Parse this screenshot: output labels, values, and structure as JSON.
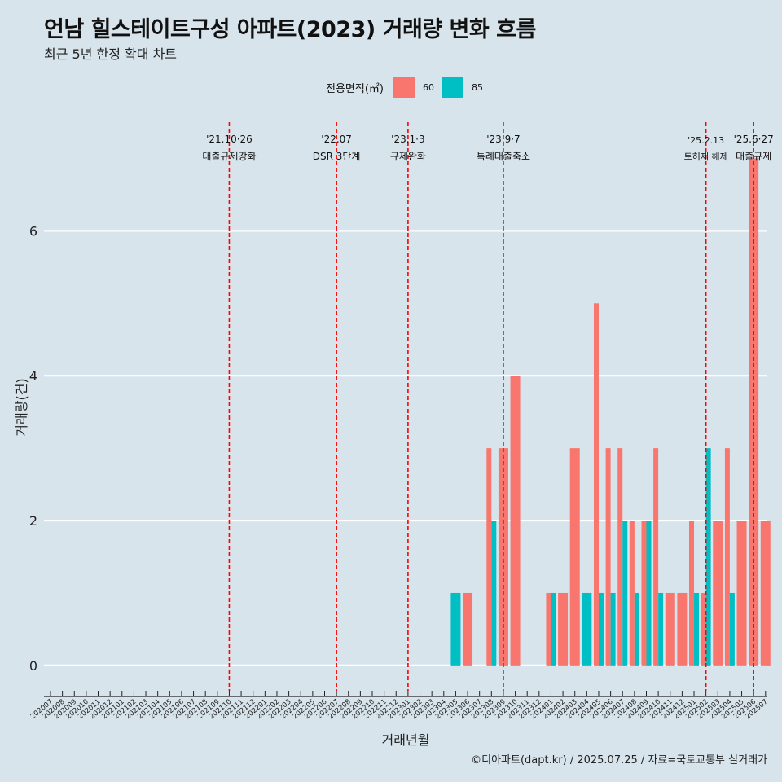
{
  "title": "언남 힐스테이트구성 아파트(2023) 거래량 변화 흐름",
  "subtitle": "최근 5년 한정 확대 차트",
  "caption": "©디아파트(dapt.kr) / 2025.07.25 / 자료=국토교통부 실거래가",
  "legend": {
    "title": "전용면적(㎡)",
    "items": [
      {
        "label": "60",
        "color": "#f8766d"
      },
      {
        "label": "85",
        "color": "#00bfc4"
      }
    ]
  },
  "chart_data": {
    "type": "bar",
    "xlabel": "거래년월",
    "ylabel": "거래량(건)",
    "ylim": [
      -0.35,
      7.5
    ],
    "yticks": [
      0,
      2,
      4,
      6
    ],
    "grid": true,
    "legend_position": "top",
    "categories": [
      "202007",
      "202008",
      "202009",
      "202010",
      "202011",
      "202012",
      "202101",
      "202102",
      "202103",
      "202104",
      "202105",
      "202106",
      "202107",
      "202108",
      "202109",
      "202110",
      "202111",
      "202112",
      "202201",
      "202202",
      "202203",
      "202204",
      "202205",
      "202206",
      "202207",
      "202208",
      "202209",
      "202210",
      "202211",
      "202212",
      "202301",
      "202302",
      "202303",
      "202304",
      "202305",
      "202306",
      "202307",
      "202308",
      "202309",
      "202310",
      "202311",
      "202312",
      "202401",
      "202402",
      "202403",
      "202404",
      "202405",
      "202406",
      "202407",
      "202408",
      "202409",
      "202410",
      "202411",
      "202412",
      "202501",
      "202502",
      "202503",
      "202504",
      "202505",
      "202506",
      "202507"
    ],
    "series": [
      {
        "name": "60",
        "color": "#f8766d",
        "values": [
          0,
          0,
          0,
          0,
          0,
          0,
          0,
          0,
          0,
          0,
          0,
          0,
          0,
          0,
          0,
          0,
          0,
          0,
          0,
          0,
          0,
          0,
          0,
          0,
          0,
          0,
          0,
          0,
          0,
          0,
          0,
          0,
          0,
          0,
          0,
          1,
          0,
          3,
          3,
          4,
          0,
          0,
          1,
          1,
          3,
          0,
          5,
          3,
          3,
          2,
          2,
          3,
          1,
          1,
          2,
          1,
          2,
          3,
          2,
          7,
          2
        ]
      },
      {
        "name": "85",
        "color": "#00bfc4",
        "values": [
          0,
          0,
          0,
          0,
          0,
          0,
          0,
          0,
          0,
          0,
          0,
          0,
          0,
          0,
          0,
          0,
          0,
          0,
          0,
          0,
          0,
          0,
          0,
          0,
          0,
          0,
          0,
          0,
          0,
          0,
          0,
          0,
          0,
          0,
          1,
          0,
          0,
          2,
          0,
          0,
          0,
          0,
          1,
          0,
          0,
          1,
          1,
          1,
          2,
          1,
          2,
          1,
          0,
          0,
          1,
          3,
          0,
          1,
          0,
          0,
          0
        ]
      }
    ],
    "annotations": [
      {
        "month": "202110",
        "date": "'21.10·26",
        "text": "대출규제강화"
      },
      {
        "month": "202207",
        "date": "'22.07",
        "text": "DSR 3단계"
      },
      {
        "month": "202301",
        "date": "'23.1·3",
        "text": "규제완화"
      },
      {
        "month": "202309",
        "date": "'23.9·7",
        "text": "특례대출축소"
      },
      {
        "month": "202502",
        "date": "'25.2.13",
        "text": "토허제 해제"
      },
      {
        "month": "202506",
        "date": "'25.6·27",
        "text": "대출규제"
      }
    ]
  }
}
